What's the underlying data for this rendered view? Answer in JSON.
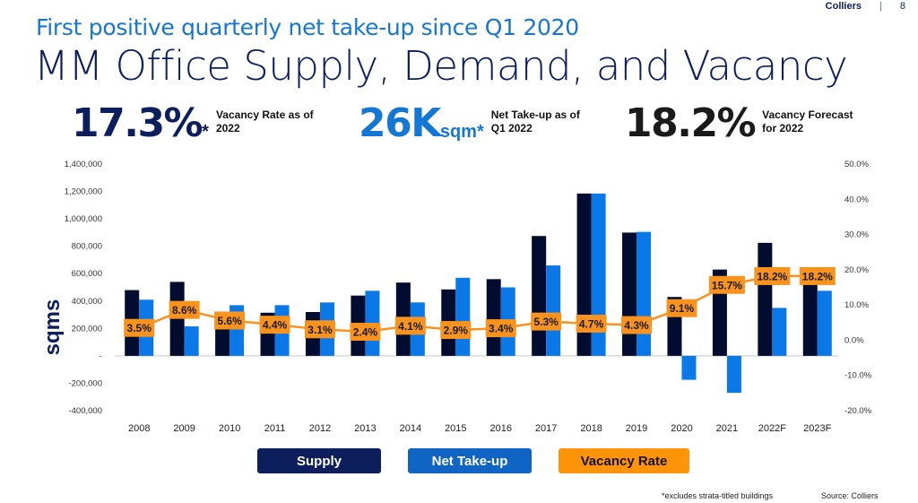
{
  "header": {
    "brand": "Colliers",
    "separator": "|",
    "page_number": "8",
    "subtitle": "First positive quarterly net take-up since Q1 2020",
    "title": "MM Office Supply, Demand, and Vacancy"
  },
  "kpis": [
    {
      "value": "17.3%",
      "unit": "*",
      "description": "Vacancy Rate as of 2022"
    },
    {
      "value": "26K",
      "unit": "sqm*",
      "description": "Net Take-up as of Q1 2022"
    },
    {
      "value": "18.2%",
      "unit": "",
      "description": "Vacancy Forecast for 2022"
    }
  ],
  "footer": {
    "note": "*excludes strata-titled buildings",
    "source": "Source: Colliers"
  },
  "colors": {
    "supply": "#020c2e",
    "net_take_up": "#0a78e6",
    "vacancy": "#f7931e",
    "legend_supply": "#0c1f5c",
    "legend_net": "#1065c4",
    "legend_vacancy": "#ff9408"
  },
  "chart_data": {
    "type": "bar",
    "title": "MM Office Supply, Demand, and Vacancy",
    "xlabel": "",
    "ylabel": "sqms",
    "y2label": "",
    "categories": [
      "2008",
      "2009",
      "2010",
      "2011",
      "2012",
      "2013",
      "2014",
      "2015",
      "2016",
      "2017",
      "2018",
      "2019",
      "2020",
      "2021",
      "2022F",
      "2023F"
    ],
    "series": [
      {
        "name": "Supply",
        "type": "bar",
        "axis": "left",
        "values": [
          480000,
          540000,
          290000,
          315000,
          320000,
          440000,
          535000,
          485000,
          560000,
          875000,
          1185000,
          900000,
          430000,
          630000,
          825000,
          560000
        ]
      },
      {
        "name": "Net Take-up",
        "type": "bar",
        "axis": "left",
        "values": [
          410000,
          215000,
          370000,
          370000,
          390000,
          475000,
          390000,
          570000,
          500000,
          660000,
          1185000,
          905000,
          -175000,
          -270000,
          350000,
          475000
        ]
      },
      {
        "name": "Vacancy Rate",
        "type": "line",
        "axis": "right",
        "values": [
          3.5,
          8.6,
          5.6,
          4.4,
          3.1,
          2.4,
          4.1,
          2.9,
          3.4,
          5.3,
          4.7,
          4.3,
          9.1,
          15.7,
          18.2,
          18.2
        ],
        "labels": [
          "3.5%",
          "8.6%",
          "5.6%",
          "4.4%",
          "3.1%",
          "2.4%",
          "4.1%",
          "2.9%",
          "3.4%",
          "5.3%",
          "4.7%",
          "4.3%",
          "9.1%",
          "15.7%",
          "18.2%",
          "18.2%"
        ]
      }
    ],
    "ylim": [
      -400000,
      1400000
    ],
    "yticks": [
      1400000,
      1200000,
      1000000,
      800000,
      600000,
      400000,
      200000,
      0,
      -200000,
      -400000
    ],
    "ytick_labels": [
      "1,400,000",
      "1,200,000",
      "1,000,000",
      "800,000",
      "600,000",
      "400,000",
      "200,000",
      "-",
      "-200,000",
      "-400,000"
    ],
    "y2lim": [
      -20,
      50
    ],
    "y2ticks": [
      50,
      40,
      30,
      20,
      10,
      0,
      -10,
      -20
    ],
    "y2tick_labels": [
      "50.0%",
      "40.0%",
      "30.0%",
      "20.0%",
      "10.0%",
      "0.0%",
      "-10.0%",
      "-20.0%"
    ],
    "grid": false,
    "legend": {
      "position": "bottom",
      "entries": [
        "Supply",
        "Net Take-up",
        "Vacancy Rate"
      ]
    }
  }
}
